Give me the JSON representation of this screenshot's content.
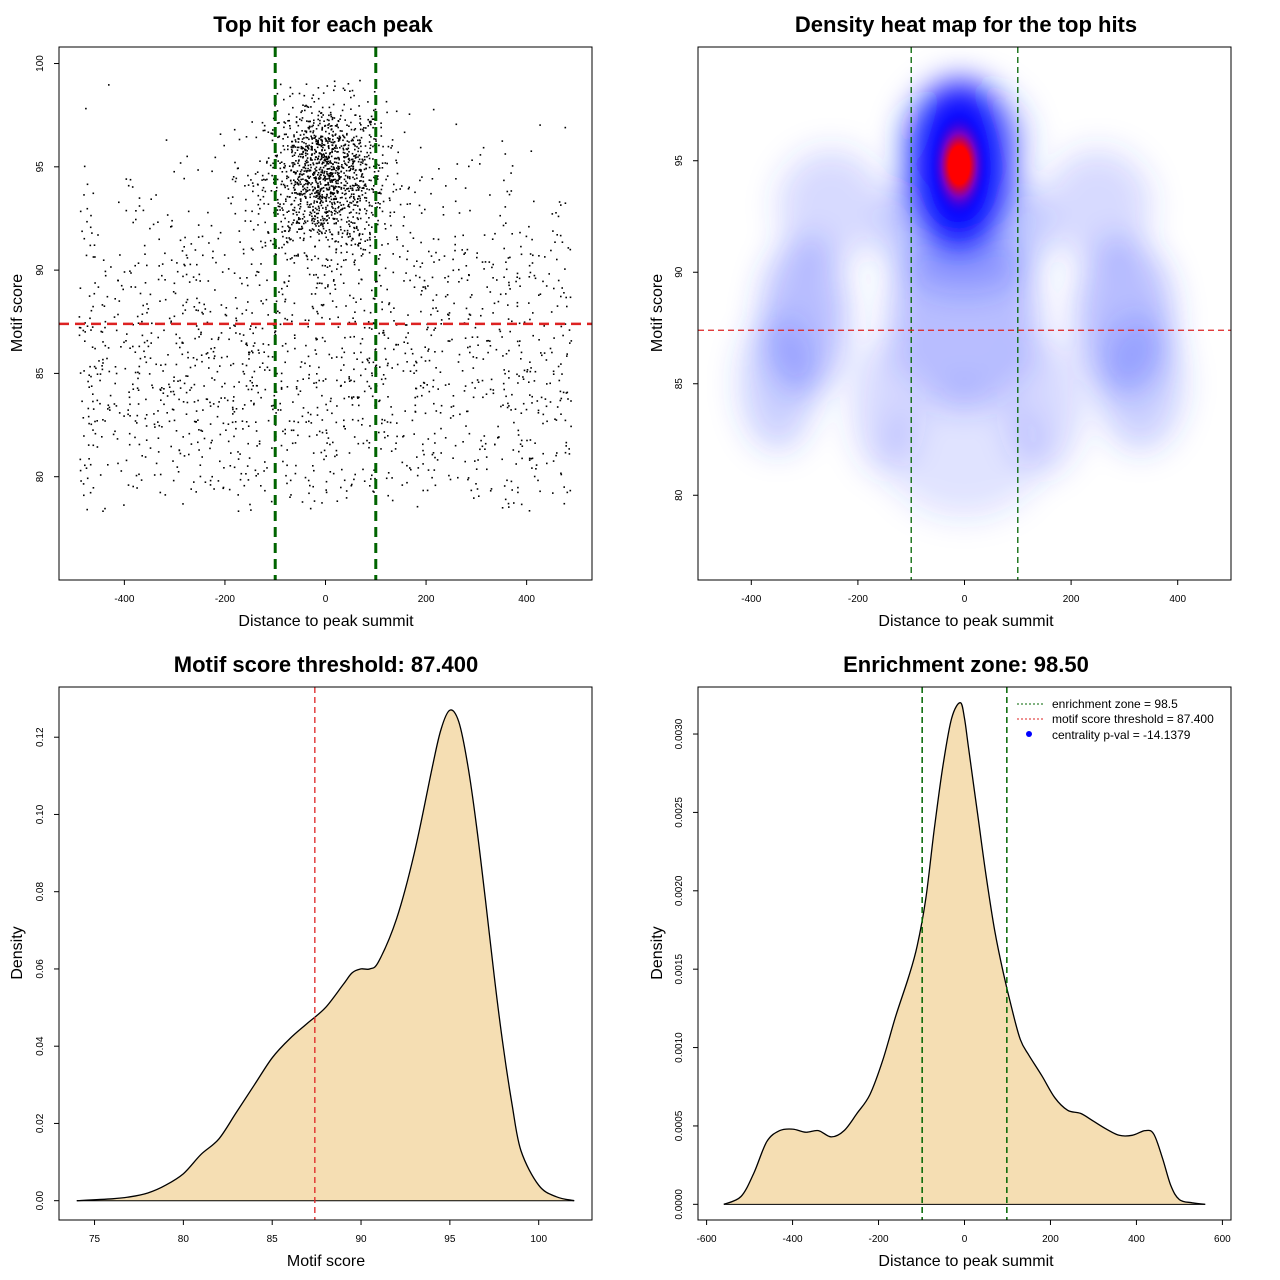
{
  "chart_data": [
    {
      "type": "scatter",
      "title": "Top hit for each peak",
      "xlabel": "Distance to peak summit",
      "ylabel": "Motif score",
      "xlim": [
        -530,
        530
      ],
      "ylim": [
        75,
        100.8
      ],
      "xticks": [
        -400,
        -200,
        0,
        200,
        400
      ],
      "yticks": [
        80,
        85,
        90,
        95,
        100
      ],
      "vlines": [
        -100,
        100
      ],
      "hline": 87.4,
      "point_count": 3200,
      "point_distribution": {
        "central_cluster": {
          "x_mean": 0,
          "x_sd": 60,
          "y_mean": 94.5,
          "y_sd": 1.8
        },
        "background": {
          "x_range": [
            -490,
            490
          ],
          "y_range": [
            78.5,
            99
          ]
        }
      },
      "colors": {
        "points": "#000000",
        "vlines": "#006400",
        "hline": "#dd2222"
      }
    },
    {
      "type": "heatmap",
      "title": "Density heat map for the top hits",
      "xlabel": "Distance to peak summit",
      "ylabel": "Motif score",
      "xlim": [
        -500,
        500
      ],
      "ylim": [
        76.2,
        100.1
      ],
      "xticks": [
        -400,
        -200,
        0,
        200,
        400
      ],
      "yticks": [
        80,
        85,
        90,
        95
      ],
      "vlines": [
        -100,
        100
      ],
      "hline": 87.4,
      "density_peak": {
        "x": -10,
        "y": 94.8
      },
      "colors": {
        "low": "#ffffff",
        "mid": "#0000ff",
        "high": "#ff0000",
        "vlines": "#006400",
        "hline": "#dd2222"
      }
    },
    {
      "type": "area",
      "title": "Motif score threshold: 87.400",
      "xlabel": "Motif score",
      "ylabel": "Density",
      "xlim": [
        73,
        103
      ],
      "ylim": [
        -0.005,
        0.133
      ],
      "xticks": [
        75,
        80,
        85,
        90,
        95,
        100
      ],
      "yticks": [
        "0.00",
        "0.02",
        "0.04",
        "0.06",
        "0.08",
        "0.10",
        "0.12"
      ],
      "vline": 87.4,
      "x": [
        74,
        76,
        77,
        78,
        79,
        80,
        81,
        82,
        83,
        84,
        85,
        86,
        87,
        88,
        89,
        89.5,
        90,
        90.5,
        91,
        92,
        93,
        94,
        94.5,
        95,
        95.5,
        96,
        96.5,
        97,
        97.5,
        98,
        98.5,
        99,
        100,
        101,
        102
      ],
      "y": [
        0,
        0.0005,
        0.001,
        0.002,
        0.004,
        0.007,
        0.012,
        0.016,
        0.023,
        0.03,
        0.037,
        0.042,
        0.046,
        0.05,
        0.056,
        0.059,
        0.06,
        0.06,
        0.062,
        0.073,
        0.09,
        0.112,
        0.122,
        0.127,
        0.124,
        0.113,
        0.097,
        0.078,
        0.058,
        0.04,
        0.025,
        0.013,
        0.004,
        0.001,
        0
      ],
      "colors": {
        "fill": "#f5deb3",
        "line": "#000000",
        "vline": "#dd2222"
      }
    },
    {
      "type": "area",
      "title": "Enrichment zone: 98.50",
      "xlabel": "Distance to peak summit",
      "ylabel": "Density",
      "xlim": [
        -620,
        620
      ],
      "ylim": [
        -0.0001,
        0.0033
      ],
      "xticks": [
        -600,
        -400,
        -200,
        0,
        200,
        400,
        600
      ],
      "yticks": [
        "0.0000",
        "0.0005",
        "0.0010",
        "0.0015",
        "0.0020",
        "0.0025",
        "0.0030"
      ],
      "vlines": [
        -98.5,
        98.5
      ],
      "x": [
        -560,
        -520,
        -490,
        -460,
        -430,
        -400,
        -370,
        -340,
        -310,
        -280,
        -250,
        -220,
        -190,
        -160,
        -130,
        -110,
        -90,
        -70,
        -50,
        -30,
        -10,
        0,
        10,
        30,
        50,
        70,
        90,
        110,
        130,
        150,
        180,
        210,
        240,
        270,
        300,
        330,
        360,
        390,
        420,
        440,
        460,
        480,
        500,
        530,
        560
      ],
      "y": [
        0,
        5e-05,
        0.0002,
        0.0004,
        0.00047,
        0.00048,
        0.00046,
        0.00047,
        0.00043,
        0.00047,
        0.00058,
        0.0007,
        0.00092,
        0.0012,
        0.00145,
        0.00165,
        0.00195,
        0.0024,
        0.0028,
        0.0031,
        0.0032,
        0.0031,
        0.0029,
        0.0025,
        0.0021,
        0.00175,
        0.00148,
        0.00125,
        0.00105,
        0.00095,
        0.00082,
        0.00068,
        0.0006,
        0.00058,
        0.00053,
        0.00048,
        0.00044,
        0.00044,
        0.00047,
        0.00045,
        0.0003,
        0.00012,
        3e-05,
        1e-05,
        0
      ],
      "legend": [
        {
          "label": "enrichment zone = 98.5",
          "symbol": "dotted-line",
          "color": "#006400"
        },
        {
          "label": "motif score threshold = 87.400",
          "symbol": "dotted-line",
          "color": "#dd2222"
        },
        {
          "label": "centrality p-val = -14.1379",
          "symbol": "dot",
          "color": "#0000ff"
        }
      ],
      "legend_position": "top-right",
      "colors": {
        "fill": "#f5deb3",
        "line": "#000000",
        "vlines": "#006400"
      }
    }
  ]
}
